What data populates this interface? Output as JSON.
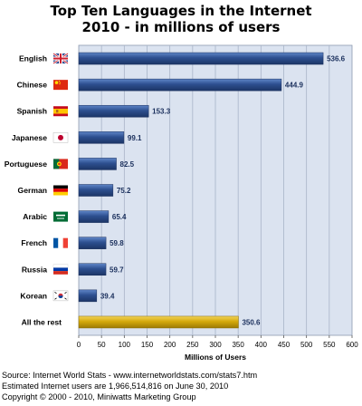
{
  "chart_data": {
    "type": "bar",
    "orientation": "horizontal",
    "title": "Top Ten Languages in the Internet",
    "subtitle": "2010 - in millions of users",
    "xlabel": "Millions of Users",
    "ylabel": "",
    "xlim": [
      0,
      600
    ],
    "x_ticks": [
      0,
      50,
      100,
      150,
      200,
      250,
      300,
      350,
      400,
      450,
      500,
      550,
      600
    ],
    "grid": true,
    "categories": [
      "English",
      "Chinese",
      "Spanish",
      "Japanese",
      "Portuguese",
      "German",
      "Arabic",
      "French",
      "Russia",
      "Korean",
      "All the rest"
    ],
    "values": [
      536.6,
      444.9,
      153.3,
      99.1,
      82.5,
      75.2,
      65.4,
      59.8,
      59.7,
      39.4,
      350.6
    ],
    "value_labels": [
      "536.6",
      "444.9",
      "153.3",
      "99.1",
      "82.5",
      "75.2",
      "65.4",
      "59.8",
      "59.7",
      "39.4",
      "350.6"
    ],
    "flags": [
      "uk-flag-icon",
      "china-flag-icon",
      "spain-flag-icon",
      "japan-flag-icon",
      "portugal-flag-icon",
      "germany-flag-icon",
      "saudi-arabia-flag-icon",
      "france-flag-icon",
      "russia-flag-icon",
      "korea-flag-icon",
      ""
    ],
    "colors": {
      "bar": "#2d4f8f",
      "bar_highlight": "#d4a90c",
      "plot_background": "#dbe3f0",
      "grid": "#a8b4c8"
    }
  },
  "footer": {
    "source": "Source: Internet World Stats - www.internetworldstats.com/stats7.htm",
    "estimate": "Estimated Internet users are 1,966,514,816 on June 30, 2010",
    "copyright": "Copyright © 2000 - 2010, Miniwatts Marketing Group"
  }
}
